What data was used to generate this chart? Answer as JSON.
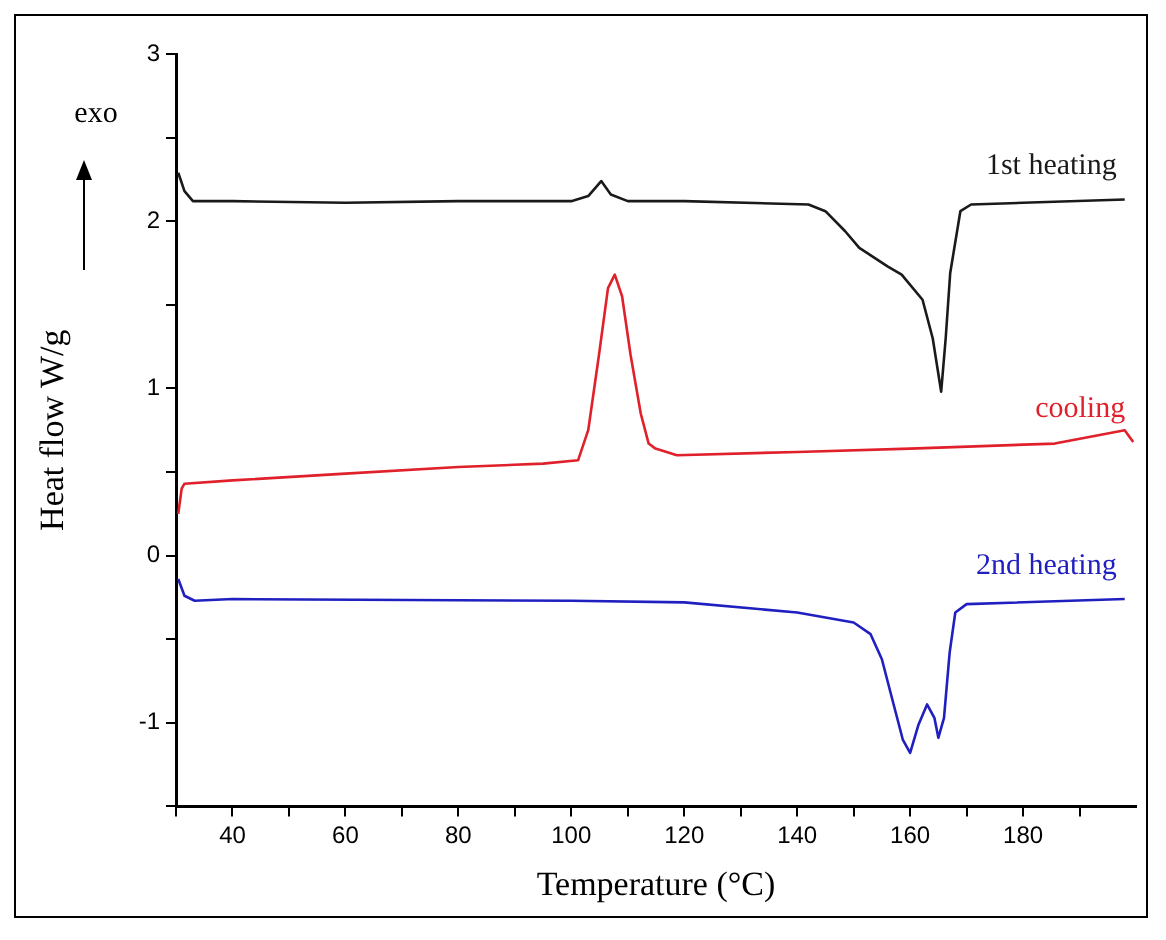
{
  "chart_data": {
    "type": "line",
    "xlabel": "Temperature (°C)",
    "ylabel": "Heat flow W/g",
    "annotations": [
      "exo"
    ],
    "marker": "none",
    "xlim": [
      30,
      200
    ],
    "ylim": [
      -1.5,
      3
    ],
    "xticks": [
      {
        "value": 30,
        "label": null
      },
      40,
      {
        "value": 50,
        "label": null
      },
      60,
      {
        "value": 70,
        "label": null
      },
      80,
      {
        "value": 90,
        "label": null
      },
      100,
      {
        "value": 110,
        "label": null
      },
      120,
      {
        "value": 130,
        "label": null
      },
      140,
      {
        "value": 150,
        "label": null
      },
      160,
      {
        "value": 170,
        "label": null
      },
      180,
      {
        "value": 190,
        "label": null
      }
    ],
    "yticks": [
      {
        "value": -1.5,
        "label": null
      },
      -1,
      {
        "value": -0.5,
        "label": null
      },
      0,
      {
        "value": 0.5,
        "label": null
      },
      1,
      {
        "value": 1.5,
        "label": null
      },
      2,
      {
        "value": 2.5,
        "label": null
      },
      3
    ],
    "series": [
      {
        "name": "1st heating",
        "color": "#1a1a1a",
        "x": [
          30.4,
          31.5,
          33,
          40,
          60,
          80,
          100,
          103,
          105.3,
          107,
          110,
          120,
          142,
          145,
          148.5,
          151,
          153.3,
          156,
          158.5,
          162.2,
          164,
          165.5,
          166.3,
          167.1,
          168.9,
          170.8,
          180,
          198
        ],
        "values": [
          2.29,
          2.18,
          2.12,
          2.12,
          2.11,
          2.12,
          2.12,
          2.15,
          2.24,
          2.16,
          2.12,
          2.12,
          2.1,
          2.06,
          1.94,
          1.84,
          1.79,
          1.73,
          1.68,
          1.53,
          1.3,
          0.98,
          1.3,
          1.69,
          2.06,
          2.1,
          2.11,
          2.13
        ]
      },
      {
        "name": "cooling",
        "color": "#e0202a",
        "x": [
          30.4,
          31,
          31.5,
          40,
          60,
          80,
          95,
          101.2,
          103,
          104.9,
          106.5,
          107.7,
          109,
          110.5,
          112.3,
          113.7,
          114.9,
          118.7,
          140,
          160,
          185.6,
          198,
          199.5
        ],
        "values": [
          0.25,
          0.4,
          0.43,
          0.45,
          0.49,
          0.53,
          0.55,
          0.57,
          0.75,
          1.2,
          1.6,
          1.68,
          1.55,
          1.2,
          0.85,
          0.67,
          0.64,
          0.6,
          0.62,
          0.64,
          0.67,
          0.75,
          0.68
        ]
      },
      {
        "name": "2nd heating",
        "color": "#2020c0",
        "x": [
          30.4,
          31.5,
          33.3,
          40,
          100,
          120,
          140,
          150,
          153,
          155,
          157,
          158.7,
          160,
          161.5,
          163,
          164.3,
          165,
          166,
          167,
          168,
          170,
          198
        ],
        "values": [
          -0.14,
          -0.24,
          -0.27,
          -0.26,
          -0.27,
          -0.28,
          -0.34,
          -0.4,
          -0.47,
          -0.62,
          -0.88,
          -1.1,
          -1.18,
          -1.01,
          -0.89,
          -0.97,
          -1.09,
          -0.97,
          -0.58,
          -0.34,
          -0.29,
          -0.26
        ]
      }
    ]
  }
}
